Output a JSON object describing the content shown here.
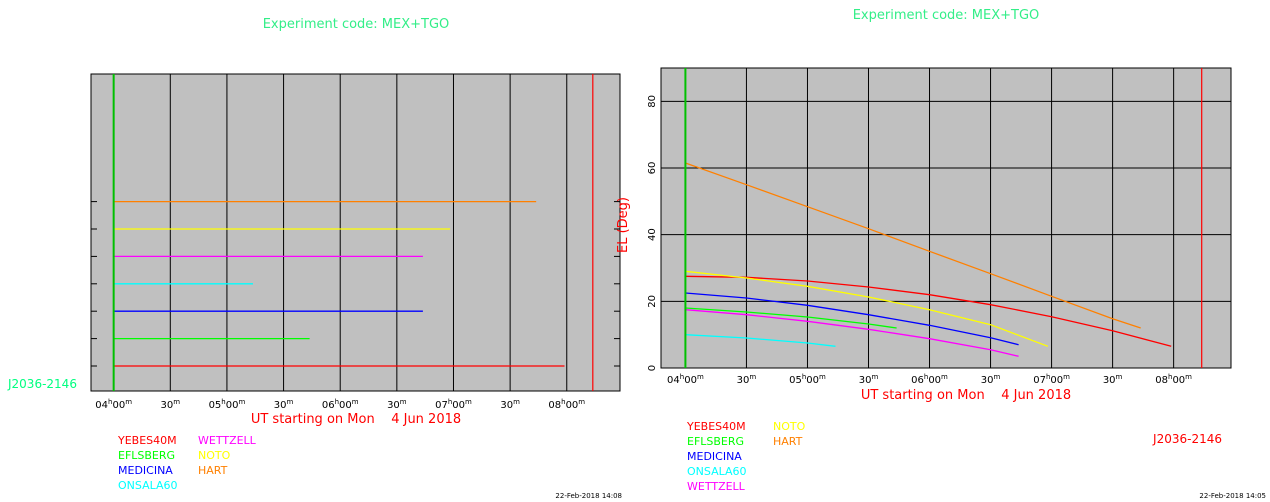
{
  "chart_data": [
    {
      "type": "line",
      "panel": "left",
      "title": "Experiment code: MEX+TGO",
      "xlabel": "UT starting on Mon    4 Jun 2018",
      "source_label": "J2036-2146",
      "timestamp": "22-Feb-2018 14:08",
      "x_unit": "hours UT",
      "xlim": [
        3.8,
        8.47
      ],
      "x_ticks": [
        {
          "x": 4.0,
          "h": "04",
          "m": "00"
        },
        {
          "x": 4.5,
          "m": "30"
        },
        {
          "x": 5.0,
          "h": "05",
          "m": "00"
        },
        {
          "x": 5.5,
          "m": "30"
        },
        {
          "x": 6.0,
          "h": "06",
          "m": "00"
        },
        {
          "x": 6.5,
          "m": "30"
        },
        {
          "x": 7.0,
          "h": "07",
          "m": "00"
        },
        {
          "x": 7.5,
          "m": "30"
        },
        {
          "x": 8.0,
          "h": "08",
          "m": "00"
        }
      ],
      "series": [
        {
          "name": "YEBES40M",
          "color": "#ff0000",
          "x_start": 4.0,
          "x_end": 7.98
        },
        {
          "name": "EFLSBERG",
          "color": "#00ff00",
          "x_start": 4.0,
          "x_end": 5.73
        },
        {
          "name": "MEDICINA",
          "color": "#0000ff",
          "x_start": 4.0,
          "x_end": 6.73
        },
        {
          "name": "ONSALA60",
          "color": "#00ffff",
          "x_start": 4.0,
          "x_end": 5.23
        },
        {
          "name": "WETTZELL",
          "color": "#ff00ff",
          "x_start": 4.0,
          "x_end": 6.73
        },
        {
          "name": "NOTO",
          "color": "#ffff00",
          "x_start": 4.0,
          "x_end": 6.97
        },
        {
          "name": "HART",
          "color": "#ff8000",
          "x_start": 4.0,
          "x_end": 7.73
        }
      ],
      "start_marker": {
        "x": 4.0,
        "color": "#00c000"
      },
      "end_marker": {
        "x": 8.23,
        "color": "#ff0000"
      }
    },
    {
      "type": "line",
      "panel": "right",
      "title": "Experiment code: MEX+TGO",
      "xlabel": "UT starting on Mon    4 Jun 2018",
      "ylabel": "EL (Deg)",
      "source_label": "J2036-2146",
      "timestamp": "22-Feb-2018 14:05",
      "x_unit": "hours UT",
      "xlim": [
        3.8,
        8.47
      ],
      "ylim": [
        0,
        90
      ],
      "y_ticks": [
        0,
        20,
        40,
        60,
        80
      ],
      "x_ticks": [
        {
          "x": 4.0,
          "h": "04",
          "m": "00"
        },
        {
          "x": 4.5,
          "m": "30"
        },
        {
          "x": 5.0,
          "h": "05",
          "m": "00"
        },
        {
          "x": 5.5,
          "m": "30"
        },
        {
          "x": 6.0,
          "h": "06",
          "m": "00"
        },
        {
          "x": 6.5,
          "m": "30"
        },
        {
          "x": 7.0,
          "h": "07",
          "m": "00"
        },
        {
          "x": 7.5,
          "m": "30"
        },
        {
          "x": 8.0,
          "h": "08",
          "m": "00"
        }
      ],
      "series": [
        {
          "name": "YEBES40M",
          "color": "#ff0000",
          "x": [
            4.0,
            4.5,
            5.0,
            5.5,
            6.0,
            6.5,
            7.0,
            7.5,
            7.98
          ],
          "y": [
            27.5,
            27.2,
            26.1,
            24.3,
            22.0,
            19.0,
            15.4,
            11.2,
            6.5
          ]
        },
        {
          "name": "EFLSBERG",
          "color": "#00ff00",
          "x": [
            4.0,
            4.5,
            5.0,
            5.5,
            5.73
          ],
          "y": [
            18.0,
            16.8,
            15.3,
            13.2,
            12.0
          ]
        },
        {
          "name": "MEDICINA",
          "color": "#0000ff",
          "x": [
            4.0,
            4.5,
            5.0,
            5.5,
            6.0,
            6.5,
            6.73
          ],
          "y": [
            22.5,
            21.0,
            18.8,
            16.0,
            12.8,
            9.1,
            7.0
          ]
        },
        {
          "name": "ONSALA60",
          "color": "#00ffff",
          "x": [
            4.0,
            4.5,
            5.0,
            5.23
          ],
          "y": [
            10.0,
            9.0,
            7.5,
            6.5
          ]
        },
        {
          "name": "WETTZELL",
          "color": "#ff00ff",
          "x": [
            4.0,
            4.5,
            5.0,
            5.5,
            6.0,
            6.5,
            6.73
          ],
          "y": [
            17.5,
            16.0,
            14.0,
            11.6,
            8.8,
            5.5,
            3.5
          ]
        },
        {
          "name": "NOTO",
          "color": "#ffff00",
          "x": [
            4.0,
            4.5,
            5.0,
            5.5,
            6.0,
            6.5,
            6.97
          ],
          "y": [
            29.0,
            27.0,
            24.5,
            21.3,
            17.5,
            13.0,
            6.5
          ]
        },
        {
          "name": "HART",
          "color": "#ff8000",
          "x": [
            4.0,
            4.5,
            5.0,
            5.5,
            6.0,
            6.5,
            7.0,
            7.5,
            7.73
          ],
          "y": [
            61.5,
            55.0,
            48.4,
            41.8,
            35.0,
            28.3,
            21.5,
            14.8,
            12.0
          ]
        }
      ],
      "start_marker": {
        "x": 4.0,
        "color": "#00c000"
      },
      "end_marker": {
        "x": 8.23,
        "color": "#ff0000"
      }
    }
  ],
  "colors": {
    "plot_background": "#c0c0c0",
    "title": "#33ee88",
    "axis_label": "#ff0000",
    "source_label": "#00ff80",
    "grid": "#000000"
  }
}
